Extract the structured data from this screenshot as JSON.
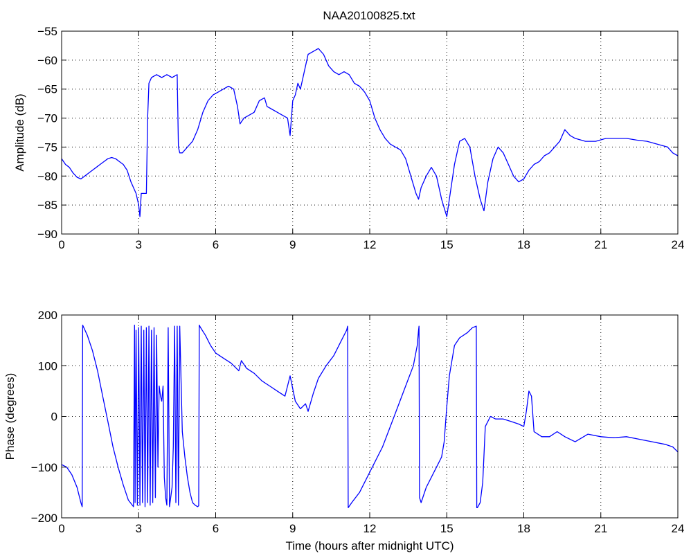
{
  "figure_title": "NAA20100825.txt",
  "chart_data": [
    {
      "type": "line",
      "title": "NAA20100825.txt",
      "xlabel": "",
      "ylabel": "Amplitude (dB)",
      "xlim": [
        0,
        24
      ],
      "ylim": [
        -90,
        -55
      ],
      "xticks": [
        0,
        3,
        6,
        9,
        12,
        15,
        18,
        21,
        24
      ],
      "yticks": [
        -90,
        -85,
        -80,
        -75,
        -70,
        -65,
        -60,
        -55
      ],
      "grid": true,
      "line_color": "#0000ff",
      "series": [
        {
          "x": [
            0,
            0.15,
            0.3,
            0.45,
            0.6,
            0.75,
            0.9,
            1.05,
            1.2,
            1.35,
            1.5,
            1.65,
            1.8,
            1.95,
            2.1,
            2.25,
            2.4,
            2.55,
            2.7,
            2.8,
            2.9,
            3.0,
            3.05,
            3.1,
            3.2,
            3.3,
            3.35,
            3.4,
            3.5,
            3.7,
            3.9,
            4.1,
            4.3,
            4.5,
            4.55,
            4.6,
            4.7,
            4.9,
            5.1,
            5.3,
            5.5,
            5.7,
            5.9,
            6.1,
            6.3,
            6.5,
            6.7,
            6.85,
            6.95,
            7.1,
            7.3,
            7.5,
            7.7,
            7.9,
            8.0,
            8.2,
            8.4,
            8.6,
            8.8,
            8.9,
            9.0,
            9.1,
            9.2,
            9.3,
            9.4,
            9.5,
            9.6,
            9.8,
            10.0,
            10.2,
            10.4,
            10.6,
            10.8,
            11.0,
            11.2,
            11.4,
            11.6,
            11.8,
            12.0,
            12.2,
            12.4,
            12.6,
            12.8,
            13.0,
            13.2,
            13.4,
            13.6,
            13.8,
            13.9,
            14.0,
            14.2,
            14.4,
            14.6,
            14.8,
            15.0,
            15.1,
            15.3,
            15.5,
            15.7,
            15.9,
            16.1,
            16.3,
            16.45,
            16.6,
            16.8,
            17.0,
            17.2,
            17.4,
            17.6,
            17.8,
            18.0,
            18.2,
            18.4,
            18.6,
            18.8,
            19.0,
            19.2,
            19.4,
            19.6,
            19.8,
            20.0,
            20.4,
            20.8,
            21.2,
            21.6,
            22.0,
            22.4,
            22.8,
            23.2,
            23.6,
            23.8,
            24.0
          ],
          "y": [
            -77,
            -78,
            -78.5,
            -79.5,
            -80.2,
            -80.5,
            -80,
            -79.5,
            -79,
            -78.5,
            -78,
            -77.5,
            -77,
            -76.8,
            -77,
            -77.5,
            -78,
            -79,
            -81,
            -82,
            -83,
            -85,
            -87,
            -83,
            -83,
            -83,
            -70,
            -64,
            -63,
            -62.5,
            -63,
            -62.5,
            -63,
            -62.5,
            -75,
            -76,
            -76,
            -75,
            -74,
            -72,
            -69,
            -67,
            -66,
            -65.5,
            -65,
            -64.5,
            -65,
            -68,
            -71,
            -70,
            -69.5,
            -69,
            -67,
            -66.5,
            -68,
            -68.5,
            -69,
            -69.5,
            -70,
            -73,
            -67,
            -66,
            -64,
            -65,
            -63,
            -61,
            -59,
            -58.5,
            -58,
            -59,
            -61,
            -62,
            -62.5,
            -62,
            -62.5,
            -64,
            -64.5,
            -65.5,
            -67,
            -70,
            -72,
            -73.5,
            -74.5,
            -75,
            -75.5,
            -77,
            -80,
            -83,
            -84,
            -82,
            -80,
            -78.5,
            -80,
            -84,
            -87,
            -84,
            -78,
            -74,
            -73.5,
            -75,
            -80,
            -84,
            -86,
            -81,
            -77,
            -75,
            -76,
            -78,
            -80,
            -81,
            -80.5,
            -79,
            -78,
            -77.5,
            -76.5,
            -76,
            -75,
            -74,
            -72,
            -73,
            -73.5,
            -74,
            -74,
            -73.5,
            -73.5,
            -73.5,
            -73.8,
            -74,
            -74.5,
            -75,
            -76,
            -76.5
          ]
        }
      ]
    },
    {
      "type": "line",
      "title": "",
      "xlabel": "Time (hours after midnight UTC)",
      "ylabel": "Phase (degrees)",
      "xlim": [
        0,
        24
      ],
      "ylim": [
        -200,
        200
      ],
      "xticks": [
        0,
        3,
        6,
        9,
        12,
        15,
        18,
        21,
        24
      ],
      "yticks": [
        -200,
        -100,
        0,
        100,
        200
      ],
      "grid": true,
      "line_color": "#0000ff",
      "series": [
        {
          "x": [
            0,
            0.2,
            0.4,
            0.6,
            0.75,
            0.8,
            0.82,
            0.84,
            1.0,
            1.2,
            1.4,
            1.6,
            1.8,
            2.0,
            2.2,
            2.4,
            2.6,
            2.8,
            2.84,
            2.86,
            2.9,
            2.95,
            3.0,
            3.05,
            3.1,
            3.15,
            3.2,
            3.25,
            3.3,
            3.35,
            3.4,
            3.45,
            3.5,
            3.55,
            3.6,
            3.65,
            3.7,
            3.75,
            3.8,
            3.85,
            3.9,
            3.95,
            4.0,
            4.05,
            4.1,
            4.15,
            4.2,
            4.3,
            4.35,
            4.4,
            4.45,
            4.5,
            4.55,
            4.6,
            4.7,
            4.8,
            4.9,
            5.0,
            5.1,
            5.2,
            5.3,
            5.34,
            5.36,
            5.4,
            5.6,
            5.8,
            6.0,
            6.3,
            6.6,
            6.9,
            7.0,
            7.2,
            7.5,
            7.8,
            8.1,
            8.4,
            8.7,
            8.9,
            9.1,
            9.3,
            9.5,
            9.6,
            9.8,
            10.0,
            10.3,
            10.6,
            10.9,
            11.1,
            11.14,
            11.16,
            11.3,
            11.6,
            11.9,
            12.2,
            12.5,
            12.8,
            13.1,
            13.4,
            13.7,
            13.85,
            13.9,
            13.92,
            13.94,
            14.0,
            14.2,
            14.4,
            14.6,
            14.8,
            14.9,
            15.0,
            15.1,
            15.2,
            15.3,
            15.5,
            15.8,
            16.0,
            16.15,
            16.17,
            16.19,
            16.3,
            16.4,
            16.5,
            16.6,
            16.7,
            16.9,
            17.2,
            17.5,
            17.8,
            18.0,
            18.1,
            18.2,
            18.3,
            18.4,
            18.7,
            19.0,
            19.3,
            19.6,
            20.0,
            20.5,
            21.0,
            21.5,
            22.0,
            22.5,
            23.0,
            23.5,
            23.8,
            24.0
          ],
          "y": [
            -95,
            -100,
            -115,
            -140,
            -170,
            -178,
            180,
            178,
            160,
            130,
            90,
            40,
            -10,
            -60,
            -100,
            -135,
            -165,
            -178,
            180,
            -170,
            170,
            -175,
            175,
            -175,
            178,
            -170,
            170,
            -178,
            175,
            -170,
            178,
            -175,
            170,
            -170,
            175,
            -160,
            160,
            -100,
            60,
            40,
            30,
            60,
            -120,
            -160,
            -175,
            175,
            -178,
            -140,
            -60,
            178,
            -170,
            178,
            -175,
            178,
            -30,
            -80,
            -120,
            -150,
            -170,
            -175,
            -178,
            -176,
            180,
            176,
            160,
            140,
            125,
            115,
            105,
            90,
            110,
            95,
            85,
            70,
            60,
            50,
            40,
            80,
            30,
            15,
            25,
            10,
            45,
            75,
            100,
            120,
            150,
            170,
            178,
            -180,
            -170,
            -150,
            -120,
            -90,
            -60,
            -20,
            20,
            60,
            100,
            140,
            170,
            178,
            -160,
            -170,
            -140,
            -120,
            -100,
            -80,
            -50,
            20,
            80,
            110,
            140,
            155,
            165,
            175,
            178,
            -180,
            -180,
            -170,
            -130,
            -20,
            -10,
            0,
            -5,
            -5,
            -10,
            -15,
            -20,
            10,
            50,
            40,
            -30,
            -40,
            -40,
            -30,
            -40,
            -50,
            -35,
            -40,
            -42,
            -40,
            -45,
            -50,
            -55,
            -60,
            -70
          ]
        }
      ]
    }
  ]
}
